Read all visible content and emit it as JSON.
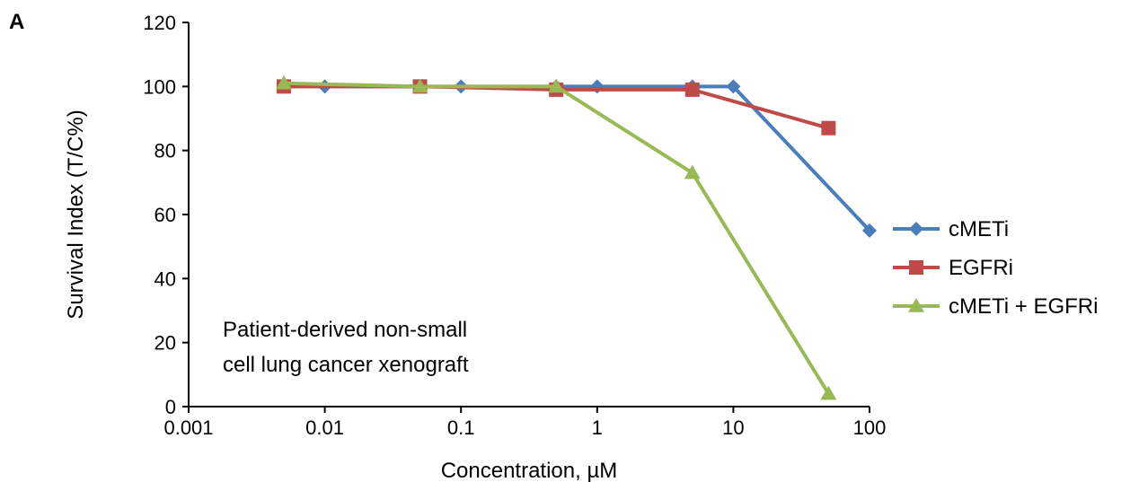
{
  "chart_data": {
    "type": "line",
    "panel_label": "A",
    "title": "",
    "xlabel": "Concentration, µM",
    "ylabel": "Survival Index (T/C%)",
    "x_scale": "log",
    "xlim": [
      0.001,
      100
    ],
    "ylim": [
      0,
      120
    ],
    "x_ticks": [
      0.001,
      0.01,
      0.1,
      1,
      10,
      100
    ],
    "x_tick_labels": [
      "0.001",
      "0.01",
      "0.1",
      "1",
      "10",
      "100"
    ],
    "y_ticks": [
      0,
      20,
      40,
      60,
      80,
      100,
      120
    ],
    "y_tick_labels": [
      "0",
      "20",
      "40",
      "60",
      "80",
      "100",
      "120"
    ],
    "grid": false,
    "legend_position": "right",
    "annotation_lines": [
      "Patient-derived non-small",
      "cell lung cancer xenograft"
    ],
    "series": [
      {
        "name": "cMETi",
        "color": "#4a7ebb",
        "marker": "diamond",
        "x": [
          0.005,
          0.01,
          0.05,
          0.1,
          0.5,
          1,
          5,
          10,
          100
        ],
        "y": [
          100,
          100,
          100,
          100,
          100,
          100,
          100,
          100,
          55
        ]
      },
      {
        "name": "EGFRi",
        "color": "#be4b48",
        "marker": "square",
        "x": [
          0.005,
          0.05,
          0.5,
          5,
          50
        ],
        "y": [
          100,
          100,
          99,
          99,
          87
        ]
      },
      {
        "name": "cMETi + EGFRi",
        "color": "#98b954",
        "marker": "triangle",
        "x": [
          0.005,
          0.05,
          0.5,
          5,
          50
        ],
        "y": [
          101,
          100,
          100,
          73,
          4
        ]
      }
    ]
  }
}
